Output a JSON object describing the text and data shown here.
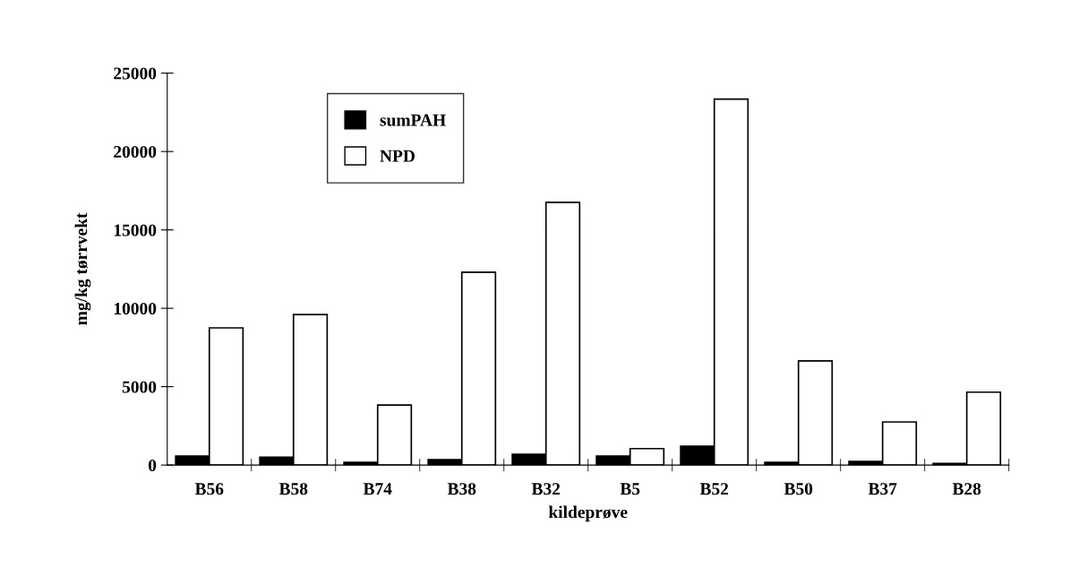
{
  "chart_data": {
    "type": "bar",
    "xlabel": "kildeprøve",
    "ylabel": "mg/kg tørrvekt",
    "categories": [
      "B56",
      "B58",
      "B74",
      "B38",
      "B32",
      "B5",
      "B52",
      "B50",
      "B37",
      "B28"
    ],
    "series": [
      {
        "name": "sumPAH",
        "color": "#000000",
        "values": [
          570,
          500,
          170,
          340,
          690,
          570,
          1200,
          170,
          230,
          110
        ]
      },
      {
        "name": "NPD",
        "color": "#ffffff",
        "values": [
          8750,
          9600,
          3830,
          12300,
          16760,
          1050,
          23340,
          6640,
          2750,
          4650
        ]
      }
    ],
    "ylim": [
      0,
      25000
    ],
    "yticks": [
      0,
      5000,
      10000,
      15000,
      20000,
      25000
    ],
    "grid": false,
    "legend": "top left"
  }
}
